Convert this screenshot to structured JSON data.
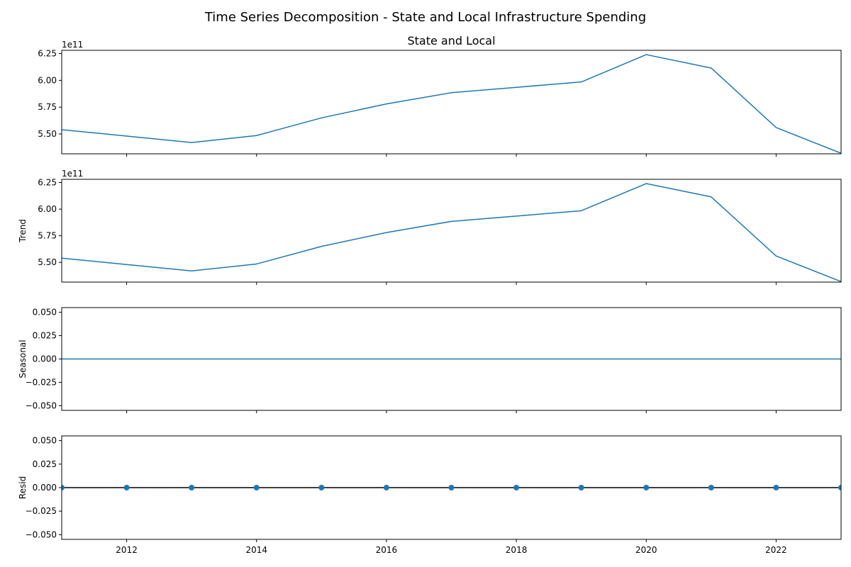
{
  "figure": {
    "title": "Time Series Decomposition - State and Local Infrastructure Spending"
  },
  "chart_data": [
    {
      "type": "line",
      "title": "State and Local",
      "ylabel": "",
      "offset_label": "1e11",
      "x": [
        2011,
        2012,
        2013,
        2014,
        2015,
        2016,
        2017,
        2018,
        2019,
        2020,
        2021,
        2022,
        2023
      ],
      "values": [
        554000000000.0,
        548000000000.0,
        542000000000.0,
        548500000000.0,
        565000000000.0,
        578000000000.0,
        588500000000.0,
        593500000000.0,
        598500000000.0,
        624000000000.0,
        611500000000.0,
        556000000000.0,
        532000000000.0
      ],
      "xlim": [
        2011,
        2023
      ],
      "ylim": [
        531500000000.0,
        628000000000.0
      ],
      "yticks": [
        550000000000.0,
        575000000000.0,
        600000000000.0,
        625000000000.0
      ],
      "ytick_labels": [
        "5.50",
        "5.75",
        "6.00",
        "6.25"
      ],
      "xticks": [
        2012,
        2014,
        2016,
        2018,
        2020,
        2022
      ],
      "xtick_labels": [],
      "color": "#1f77b4",
      "grid": false
    },
    {
      "type": "line",
      "title": "",
      "ylabel": "Trend",
      "offset_label": "1e11",
      "x": [
        2011,
        2012,
        2013,
        2014,
        2015,
        2016,
        2017,
        2018,
        2019,
        2020,
        2021,
        2022,
        2023
      ],
      "values": [
        554000000000.0,
        548000000000.0,
        542000000000.0,
        548500000000.0,
        565000000000.0,
        578000000000.0,
        588500000000.0,
        593500000000.0,
        598500000000.0,
        624000000000.0,
        611500000000.0,
        556000000000.0,
        532000000000.0
      ],
      "xlim": [
        2011,
        2023
      ],
      "ylim": [
        531500000000.0,
        628000000000.0
      ],
      "yticks": [
        550000000000.0,
        575000000000.0,
        600000000000.0,
        625000000000.0
      ],
      "ytick_labels": [
        "5.50",
        "5.75",
        "6.00",
        "6.25"
      ],
      "xticks": [
        2012,
        2014,
        2016,
        2018,
        2020,
        2022
      ],
      "xtick_labels": [],
      "color": "#1f77b4",
      "grid": false
    },
    {
      "type": "line",
      "title": "",
      "ylabel": "Seasonal",
      "offset_label": "",
      "x": [
        2011,
        2012,
        2013,
        2014,
        2015,
        2016,
        2017,
        2018,
        2019,
        2020,
        2021,
        2022,
        2023
      ],
      "values": [
        0,
        0,
        0,
        0,
        0,
        0,
        0,
        0,
        0,
        0,
        0,
        0,
        0
      ],
      "xlim": [
        2011,
        2023
      ],
      "ylim": [
        -0.055,
        0.055
      ],
      "yticks": [
        -0.05,
        -0.025,
        0.0,
        0.025,
        0.05
      ],
      "ytick_labels": [
        "−0.050",
        "−0.025",
        "0.000",
        "0.025",
        "0.050"
      ],
      "xticks": [
        2012,
        2014,
        2016,
        2018,
        2020,
        2022
      ],
      "xtick_labels": [],
      "color": "#1f77b4",
      "grid": false
    },
    {
      "type": "scatter",
      "title": "",
      "ylabel": "Resid",
      "offset_label": "",
      "x": [
        2011,
        2012,
        2013,
        2014,
        2015,
        2016,
        2017,
        2018,
        2019,
        2020,
        2021,
        2022,
        2023
      ],
      "values": [
        0,
        0,
        0,
        0,
        0,
        0,
        0,
        0,
        0,
        0,
        0,
        0,
        0
      ],
      "xlim": [
        2011,
        2023
      ],
      "ylim": [
        -0.055,
        0.055
      ],
      "yticks": [
        -0.05,
        -0.025,
        0.0,
        0.025,
        0.05
      ],
      "ytick_labels": [
        "−0.050",
        "−0.025",
        "0.000",
        "0.025",
        "0.050"
      ],
      "xticks": [
        2012,
        2014,
        2016,
        2018,
        2020,
        2022
      ],
      "xtick_labels": [
        "2012",
        "2014",
        "2016",
        "2018",
        "2020",
        "2022"
      ],
      "color": "#1f77b4",
      "zero_line": 0,
      "zero_line_color": "#000000",
      "grid": false
    }
  ]
}
